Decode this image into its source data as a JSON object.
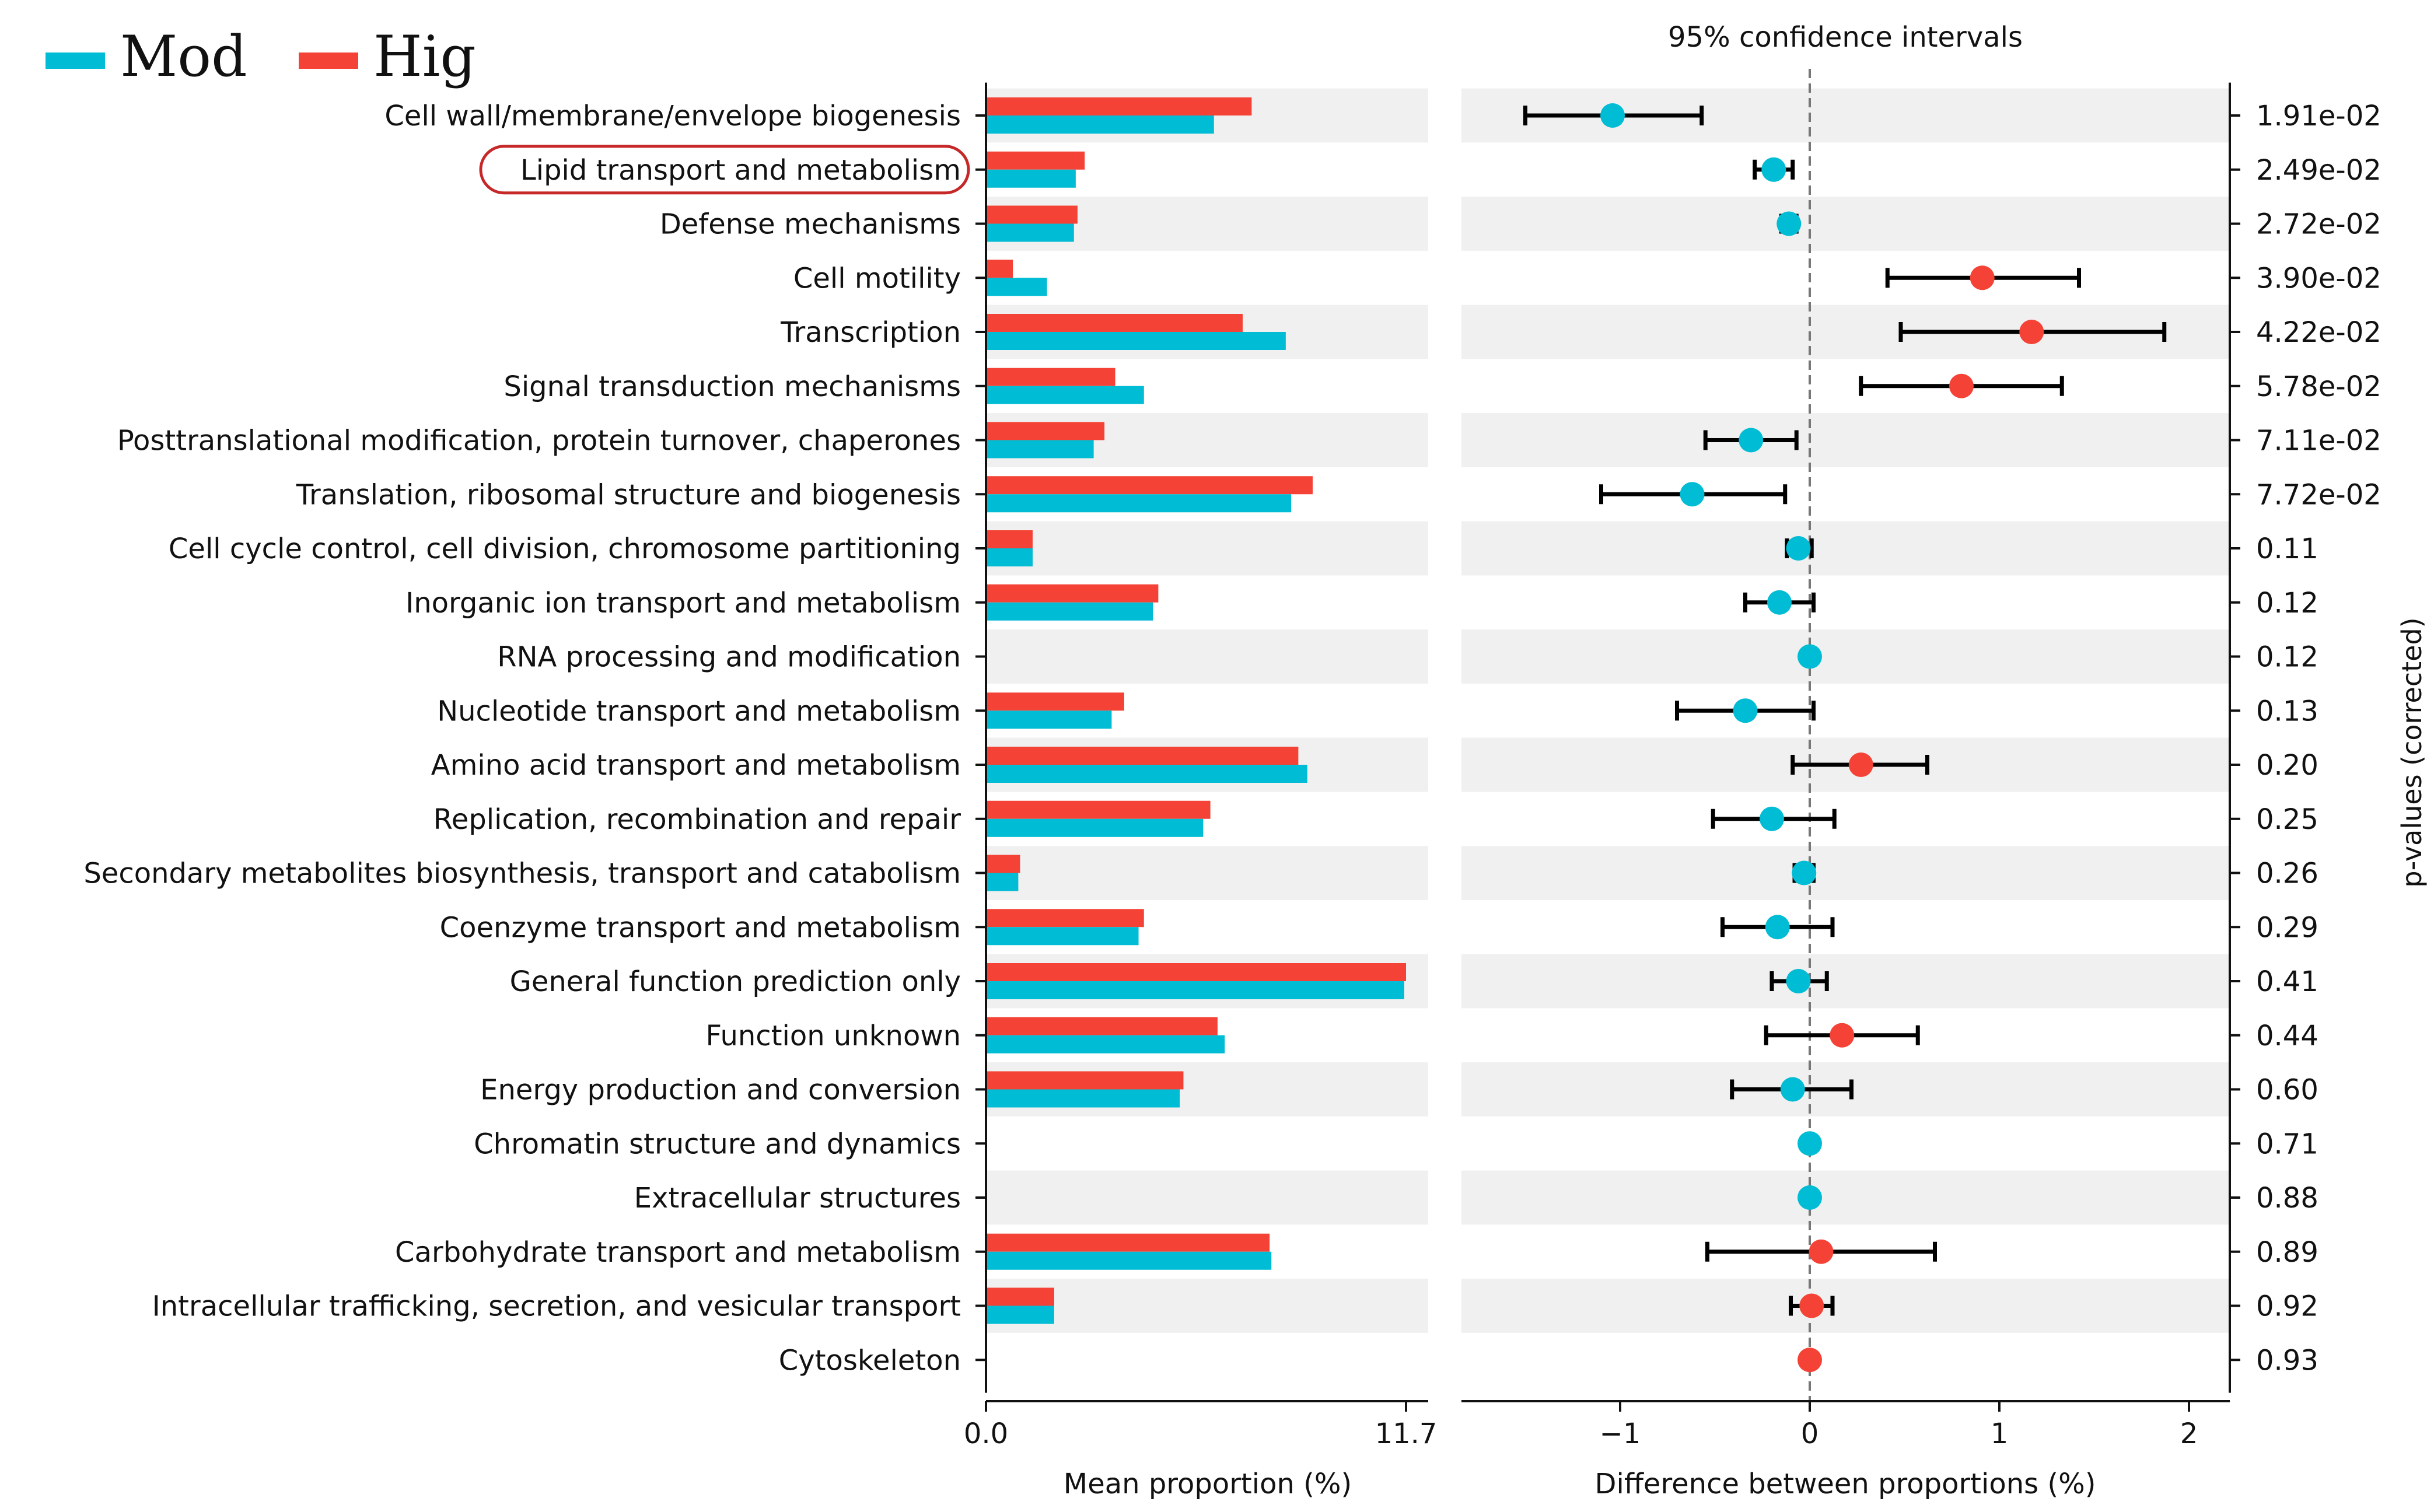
{
  "chart_data": {
    "type": "extended-error-bar",
    "legend": [
      {
        "name": "Mod",
        "color": "#00bcd4"
      },
      {
        "name": "Hig",
        "color": "#f44336"
      }
    ],
    "categories": [
      "Cell wall/membrane/envelope biogenesis",
      "Lipid transport and metabolism",
      "Defense mechanisms",
      "Cell motility",
      "Transcription",
      "Signal transduction mechanisms",
      "Posttranslational modification, protein turnover, chaperones",
      "Translation, ribosomal structure and biogenesis",
      "Cell cycle control, cell division, chromosome partitioning",
      "Inorganic ion transport and metabolism",
      "RNA processing and modification",
      "Nucleotide transport and metabolism",
      "Amino acid transport and metabolism",
      "Replication, recombination and repair",
      "Secondary metabolites biosynthesis, transport and catabolism",
      "Coenzyme transport and metabolism",
      "General function prediction only",
      "Function unknown",
      "Energy production and conversion",
      "Chromatin structure and dynamics",
      "Extracellular structures",
      "Carbohydrate transport and metabolism",
      "Intracellular trafficking, secretion, and vesicular transport",
      "Cytoskeleton"
    ],
    "highlighted_category": "Lipid transport and metabolism",
    "bar_panel": {
      "xlabel": "Mean proportion (%)",
      "xlim": [
        0,
        11.7
      ],
      "xticks": [
        "0.0",
        "11.7"
      ],
      "series": [
        {
          "name": "Hig",
          "values": [
            7.4,
            2.75,
            2.55,
            0.75,
            7.15,
            3.6,
            3.3,
            9.1,
            1.3,
            4.8,
            0.02,
            3.85,
            8.7,
            6.25,
            0.95,
            4.4,
            11.7,
            6.45,
            5.5,
            0.02,
            0.0,
            7.9,
            1.9,
            0.02
          ]
        },
        {
          "name": "Mod",
          "values": [
            6.35,
            2.5,
            2.45,
            1.7,
            8.35,
            4.4,
            3.0,
            8.5,
            1.3,
            4.65,
            0.02,
            3.5,
            8.95,
            6.05,
            0.9,
            4.25,
            11.65,
            6.65,
            5.4,
            0.02,
            0.0,
            7.95,
            1.9,
            0.0
          ]
        }
      ]
    },
    "ci_panel": {
      "title": "95% confidence intervals",
      "xlabel": "Difference between proportions (%)",
      "xlim": [
        -1.83,
        2.22
      ],
      "xticks": [
        -1,
        0,
        1,
        2
      ],
      "xtick_labels": [
        "−1",
        "0",
        "1",
        "2"
      ],
      "differences": [
        -1.04,
        -0.19,
        -0.11,
        0.91,
        1.17,
        0.8,
        -0.31,
        -0.62,
        -0.06,
        -0.16,
        0.0,
        -0.34,
        0.27,
        -0.2,
        -0.03,
        -0.17,
        -0.06,
        0.17,
        -0.09,
        0.0,
        0.0,
        0.06,
        0.01,
        0.0
      ],
      "ci_low": [
        -1.5,
        -0.29,
        -0.15,
        0.41,
        0.48,
        0.27,
        -0.55,
        -1.1,
        -0.12,
        -0.34,
        0.0,
        -0.7,
        -0.09,
        -0.51,
        -0.08,
        -0.46,
        -0.2,
        -0.23,
        -0.41,
        0.0,
        0.0,
        -0.54,
        -0.1,
        0.0
      ],
      "ci_high": [
        -0.57,
        -0.09,
        -0.07,
        1.42,
        1.87,
        1.33,
        -0.07,
        -0.13,
        0.01,
        0.02,
        0.0,
        0.02,
        0.62,
        0.13,
        0.02,
        0.12,
        0.09,
        0.57,
        0.22,
        0.0,
        0.0,
        0.66,
        0.12,
        0.0
      ],
      "favors": [
        "Mod",
        "Mod",
        "Mod",
        "Hig",
        "Hig",
        "Hig",
        "Mod",
        "Mod",
        "Mod",
        "Mod",
        "Mod",
        "Mod",
        "Hig",
        "Mod",
        "Mod",
        "Mod",
        "Mod",
        "Hig",
        "Mod",
        "Mod",
        "Mod",
        "Hig",
        "Hig",
        "Hig"
      ]
    },
    "pvalue_panel": {
      "ylabel": "p-values (corrected)",
      "values": [
        "1.91e-02",
        "2.49e-02",
        "2.72e-02",
        "3.90e-02",
        "4.22e-02",
        "5.78e-02",
        "7.11e-02",
        "7.72e-02",
        "0.11",
        "0.12",
        "0.12",
        "0.13",
        "0.20",
        "0.25",
        "0.26",
        "0.29",
        "0.41",
        "0.44",
        "0.60",
        "0.71",
        "0.88",
        "0.89",
        "0.92",
        "0.93"
      ]
    },
    "colors": {
      "stripe": "#f0f0f0",
      "axis": "#111111",
      "zero_line": "#777777",
      "highlight_outline": "#c62828"
    }
  }
}
